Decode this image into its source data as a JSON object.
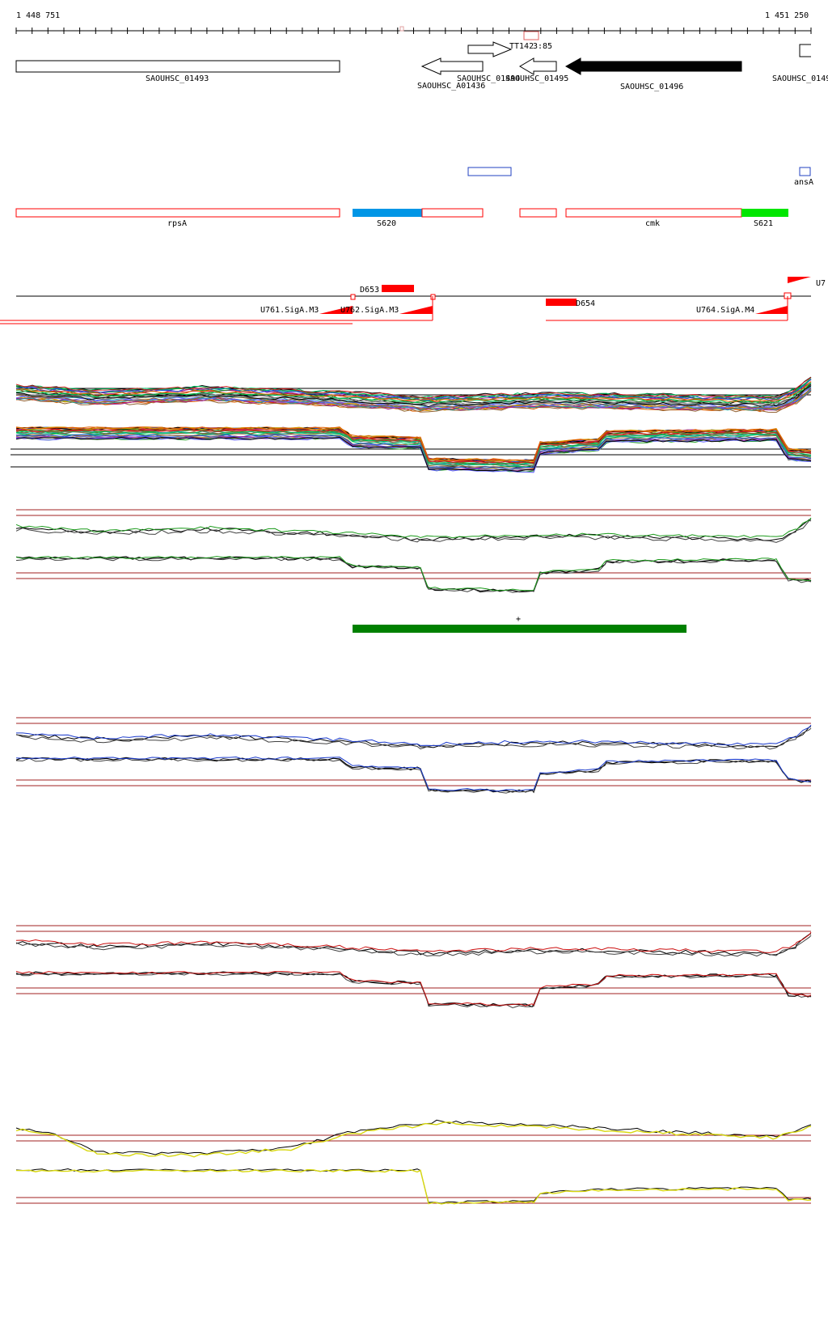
{
  "coordinates": {
    "start_label": "1 448 751",
    "end_label": "1 451 250"
  },
  "tracks": {
    "genes": {
      "items": [
        {
          "name": "SAOUHSC_01493",
          "strand": "none",
          "filled": false
        },
        {
          "name": "SAOUHSC_A01436",
          "strand": "-",
          "filled": false
        },
        {
          "name": "SAOUHSC_01494",
          "strand": "+",
          "filled": false
        },
        {
          "name": "SAOUHSC_01495",
          "strand": "-",
          "filled": false
        },
        {
          "name": "SAOUHSC_01496",
          "strand": "-",
          "filled": true
        },
        {
          "name": "SAOUHSC_0149",
          "strand": "none",
          "filled": false
        }
      ],
      "label_TT": "TT142",
      "label_TT_num": "3:85"
    },
    "annotations_blue": {
      "label": "ansA"
    },
    "regions": {
      "items": [
        {
          "name": "rpsA",
          "color": "#ff0000",
          "filled": false
        },
        {
          "name": "S620",
          "color": "#0096e6",
          "filled": true
        },
        {
          "name": "",
          "color": "#ff0000",
          "filled": false
        },
        {
          "name": "",
          "color": "#ff0000",
          "filled": false
        },
        {
          "name": "cmk",
          "color": "#ff0000",
          "filled": false
        },
        {
          "name": "S621",
          "color": "#00e600",
          "filled": true
        }
      ]
    },
    "promoters": {
      "items": [
        {
          "name": "D653"
        },
        {
          "name": "D654"
        },
        {
          "name": "U761.SigA.M3"
        },
        {
          "name": "U762.SigA.M3"
        },
        {
          "name": "U764.SigA.M4"
        },
        {
          "name": "U7"
        }
      ]
    },
    "green_bar": {
      "strand_symbol": "+",
      "color": "#008000"
    }
  },
  "colors": {
    "rule": "#000000",
    "threshold": "#a02020",
    "expr_green": "#1a9a1a",
    "expr_blue": "#1a3acc",
    "expr_red": "#cc1010",
    "expr_yellow": "#d8d810"
  }
}
